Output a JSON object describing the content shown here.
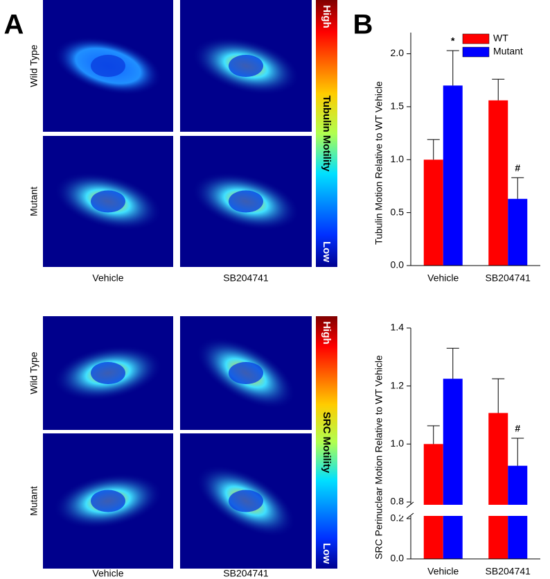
{
  "figure": {
    "panel_a": "A",
    "panel_b": "B",
    "images": [
      {
        "row_labels": [
          "Wild Type",
          "Mutant"
        ],
        "col_labels": [
          "Vehicle",
          "SB204741"
        ],
        "colorbar": {
          "high": "High",
          "label": "Tubulin Motility",
          "low": "Low"
        }
      },
      {
        "row_labels": [
          "Wild Type",
          "Mutant"
        ],
        "col_labels": [
          "Vehicle",
          "SB204741"
        ],
        "colorbar": {
          "high": "High",
          "label": "SRC Motility",
          "low": "Low"
        }
      }
    ]
  },
  "chart_data": [
    {
      "type": "bar",
      "y_label": "Tubulin Motion Relative to WT Vehicle",
      "categories": [
        "Vehicle",
        "SB204741"
      ],
      "series": [
        {
          "name": "WT",
          "color": "#ff0000",
          "values": [
            1.0,
            1.56
          ],
          "errors": [
            0.19,
            0.2
          ]
        },
        {
          "name": "Mutant",
          "color": "#0000ff",
          "values": [
            1.7,
            0.63
          ],
          "errors": [
            0.33,
            0.2
          ]
        }
      ],
      "ylim": [
        0,
        2.2
      ],
      "yticks": [
        {
          "value": 0,
          "label": "0.0"
        },
        {
          "value": 0.5,
          "label": "0.5"
        },
        {
          "value": 1,
          "label": "1.0"
        },
        {
          "value": 1.5,
          "label": "1.5"
        },
        {
          "value": 2,
          "label": "2.0"
        }
      ],
      "annotations": [
        "*",
        "#"
      ],
      "legend": "top-right"
    },
    {
      "type": "bar",
      "y_label": "SRC Perinuclear Motion Relative to WT Vehicle",
      "categories": [
        "Vehicle",
        "SB204741"
      ],
      "series": [
        {
          "name": "WT",
          "color": "#ff0000",
          "values": [
            1.0,
            1.107
          ],
          "errors": [
            0.063,
            0.118
          ]
        },
        {
          "name": "Mutant",
          "color": "#0000ff",
          "values": [
            1.225,
            0.925
          ],
          "errors": [
            0.105,
            0.095
          ]
        }
      ],
      "ylim": [
        0,
        1.4
      ],
      "ybreak": [
        0.2,
        0.8
      ],
      "yticks": [
        {
          "value": 0,
          "label": "0.0"
        },
        {
          "value": 0.2,
          "label": "0.2"
        },
        {
          "value": 0.8,
          "label": "0.8"
        },
        {
          "value": 1,
          "label": "1.0"
        },
        {
          "value": 1.2,
          "label": "1.2"
        },
        {
          "value": 1.4,
          "label": "1.4"
        }
      ],
      "annotations": [
        "#"
      ]
    }
  ]
}
